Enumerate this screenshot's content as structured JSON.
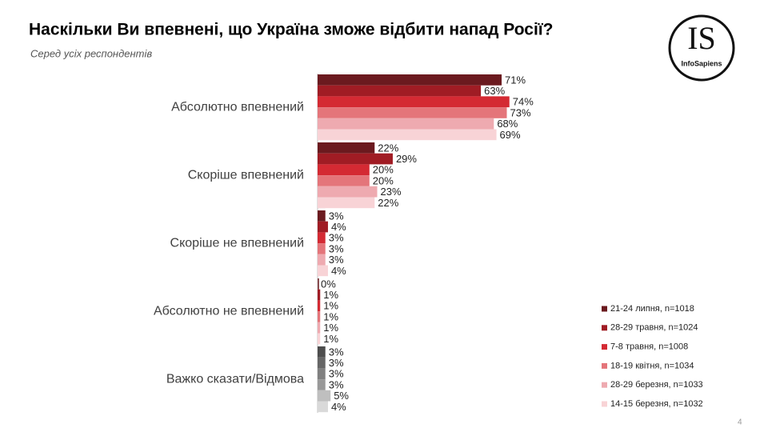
{
  "chart_data": {
    "type": "hbar",
    "title": "Наскільки Ви впевнені, що Україна зможе відбити напад Росії?",
    "subtitle": "Серед усіх респондентів",
    "categories": [
      "Абсолютно впевнений",
      "Скоріше впевнений",
      "Скоріше не впевнений",
      "Абсолютно не впевнений",
      "Важко сказати/Відмова"
    ],
    "series": [
      {
        "name": "21-24 липня, n=1018",
        "color": "#6b1a1f",
        "colors": [
          "#6b1a1f",
          "#6b1a1f",
          "#6b1a1f",
          "#6b1a1f",
          "#4d4d4d"
        ],
        "values": [
          71,
          22,
          3,
          0,
          3
        ],
        "value_labels": [
          "71%",
          "22%",
          "3%",
          "0%",
          "3%"
        ]
      },
      {
        "name": "28-29 травня, n=1024",
        "color": "#a01c24",
        "colors": [
          "#a01c24",
          "#a01c24",
          "#a01c24",
          "#a01c24",
          "#666666"
        ],
        "values": [
          63,
          29,
          4,
          1,
          3
        ],
        "value_labels": [
          "63%",
          "29%",
          "4%",
          "1%",
          "3%"
        ]
      },
      {
        "name": "7-8 травня, n=1008",
        "color": "#d42a33",
        "colors": [
          "#d42a33",
          "#d42a33",
          "#d42a33",
          "#d42a33",
          "#808080"
        ],
        "values": [
          74,
          20,
          3,
          1,
          3
        ],
        "value_labels": [
          "74%",
          "20%",
          "3%",
          "1%",
          "3%"
        ]
      },
      {
        "name": "18-19 квітня, n=1034",
        "color": "#e4757a",
        "colors": [
          "#e4757a",
          "#e4757a",
          "#e4757a",
          "#e4757a",
          "#999999"
        ],
        "values": [
          73,
          20,
          3,
          1,
          3
        ],
        "value_labels": [
          "73%",
          "20%",
          "3%",
          "1%",
          "3%"
        ]
      },
      {
        "name": "28-29 березня, n=1033",
        "color": "#eeaab0",
        "colors": [
          "#eeaab0",
          "#eeaab0",
          "#eeaab0",
          "#eeaab0",
          "#bfbfbf"
        ],
        "values": [
          68,
          23,
          3,
          1,
          5
        ],
        "value_labels": [
          "68%",
          "23%",
          "3%",
          "1%",
          "5%"
        ]
      },
      {
        "name": "14-15 березня, n=1032",
        "color": "#f8d3d6",
        "colors": [
          "#f8d3d6",
          "#f8d3d6",
          "#f8d3d6",
          "#f8d3d6",
          "#d9d9d9"
        ],
        "values": [
          69,
          22,
          4,
          1,
          4
        ],
        "value_labels": [
          "69%",
          "22%",
          "4%",
          "1%",
          "4%"
        ]
      }
    ]
  },
  "logo": {
    "mark": "IS",
    "name": "InfoSapiens"
  },
  "page_number": "4"
}
